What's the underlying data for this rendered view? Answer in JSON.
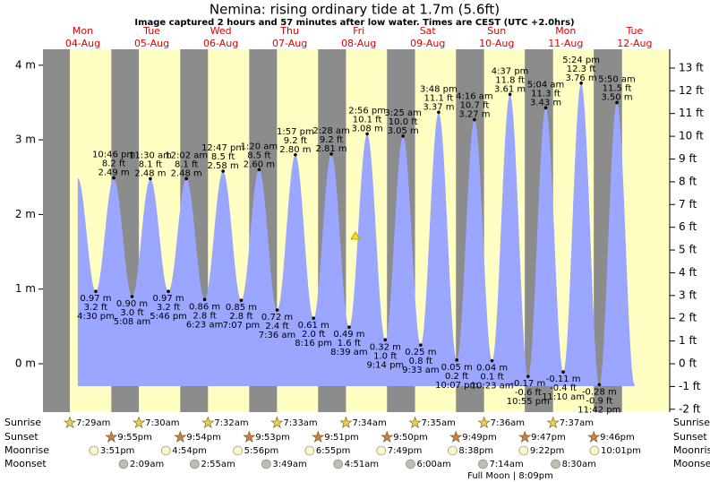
{
  "header": {
    "title": "Nemina: rising  ordinary tide at 1.7m (5.6ft)",
    "subtitle": "Image captured 2 hours and 57 minutes after low water. Times are CEST (UTC +2.0hrs)"
  },
  "days": [
    {
      "weekday": "Mon",
      "date": "04-Aug"
    },
    {
      "weekday": "Tue",
      "date": "05-Aug"
    },
    {
      "weekday": "Wed",
      "date": "06-Aug"
    },
    {
      "weekday": "Thu",
      "date": "07-Aug"
    },
    {
      "weekday": "Fri",
      "date": "08-Aug"
    },
    {
      "weekday": "Sat",
      "date": "09-Aug"
    },
    {
      "weekday": "Sun",
      "date": "10-Aug"
    },
    {
      "weekday": "Mon",
      "date": "11-Aug"
    },
    {
      "weekday": "Tue",
      "date": "12-Aug"
    }
  ],
  "left_axis": [
    "4 m",
    "3 m",
    "2 m",
    "1 m",
    "0 m"
  ],
  "right_axis": [
    "13 ft",
    "12 ft",
    "11 ft",
    "10 ft",
    "9 ft",
    "8 ft",
    "7 ft",
    "6 ft",
    "5 ft",
    "4 ft",
    "3 ft",
    "2 ft",
    "1 ft",
    "0 ft",
    "-1 ft",
    "-2 ft"
  ],
  "tides": [
    {
      "time": "4:30 pm",
      "ft": "3.2 ft",
      "m": "0.97 m"
    },
    {
      "time": "10:46 pm",
      "ft": "8.2 ft",
      "m": "2.49 m"
    },
    {
      "time": "5:08 am",
      "ft": "3.0 ft",
      "m": "0.90 m"
    },
    {
      "time": "11:30 am",
      "ft": "8.1 ft",
      "m": "2.48 m"
    },
    {
      "time": "5:46 pm",
      "ft": "3.2 ft",
      "m": "0.97 m"
    },
    {
      "time": "12:02 am",
      "ft": "8.1 ft",
      "m": "2.48 m"
    },
    {
      "time": "6:23 am",
      "ft": "2.8 ft",
      "m": "0.86 m"
    },
    {
      "time": "12:47 pm",
      "ft": "8.5 ft",
      "m": "2.58 m"
    },
    {
      "time": "7:07 pm",
      "ft": "2.8 ft",
      "m": "0.85 m"
    },
    {
      "time": "1:20 am",
      "ft": "8.5 ft",
      "m": "2.60 m"
    },
    {
      "time": "7:36 am",
      "ft": "2.4 ft",
      "m": "0.72 m"
    },
    {
      "time": "1:57 pm",
      "ft": "9.2 ft",
      "m": "2.80 m"
    },
    {
      "time": "8:16 pm",
      "ft": "2.0 ft",
      "m": "0.61 m"
    },
    {
      "time": "2:28 am",
      "ft": "9.2 ft",
      "m": "2.81 m"
    },
    {
      "time": "8:39 am",
      "ft": "1.6 ft",
      "m": "0.49 m"
    },
    {
      "time": "2:56 pm",
      "ft": "10.1 ft",
      "m": "3.08 m"
    },
    {
      "time": "9:14 pm",
      "ft": "1.0 ft",
      "m": "0.32 m"
    },
    {
      "time": "3:25 am",
      "ft": "10.0 ft",
      "m": "3.05 m"
    },
    {
      "time": "9:33 am",
      "ft": "0.8 ft",
      "m": "0.25 m"
    },
    {
      "time": "3:48 pm",
      "ft": "11.1 ft",
      "m": "3.37 m"
    },
    {
      "time": "10:07 pm",
      "ft": "0.2 ft",
      "m": "0.05 m"
    },
    {
      "time": "4:16 am",
      "ft": "10.7 ft",
      "m": "3.27 m"
    },
    {
      "time": "10:23 am",
      "ft": "0.1 ft",
      "m": "0.04 m"
    },
    {
      "time": "4:37 pm",
      "ft": "11.8 ft",
      "m": "3.61 m"
    },
    {
      "time": "10:55 pm",
      "ft": "-0.6 ft",
      "m": "-0.17 m"
    },
    {
      "time": "5:04 am",
      "ft": "11.3 ft",
      "m": "3.43 m"
    },
    {
      "time": "11:10 am",
      "ft": "-0.4 ft",
      "m": "-0.11 m"
    },
    {
      "time": "5:24 pm",
      "ft": "12.3 ft",
      "m": "3.76 m"
    },
    {
      "time": "11:42 pm",
      "ft": "-0.9 ft",
      "m": "-0.28 m"
    },
    {
      "time": "5:50 am",
      "ft": "11.5 ft",
      "m": "3.50 m"
    }
  ],
  "rows": [
    {
      "label": "Sunrise",
      "times": [
        "7:29am",
        "7:30am",
        "7:32am",
        "7:33am",
        "7:34am",
        "7:35am",
        "7:36am",
        "7:37am"
      ]
    },
    {
      "label": "Sunset",
      "times": [
        "9:55pm",
        "9:54pm",
        "9:53pm",
        "9:51pm",
        "9:50pm",
        "9:49pm",
        "9:47pm",
        "9:46pm"
      ]
    },
    {
      "label": "Moonrise",
      "times": [
        "3:51pm",
        "4:54pm",
        "5:56pm",
        "6:55pm",
        "7:49pm",
        "8:38pm",
        "9:22pm",
        "10:01pm"
      ]
    },
    {
      "label": "Moonset",
      "times": [
        null,
        "2:09am",
        "2:55am",
        "3:49am",
        "4:51am",
        "6:00am",
        "7:14am",
        "8:30am"
      ]
    }
  ],
  "full_moon": "Full Moon | 8:09pm"
}
